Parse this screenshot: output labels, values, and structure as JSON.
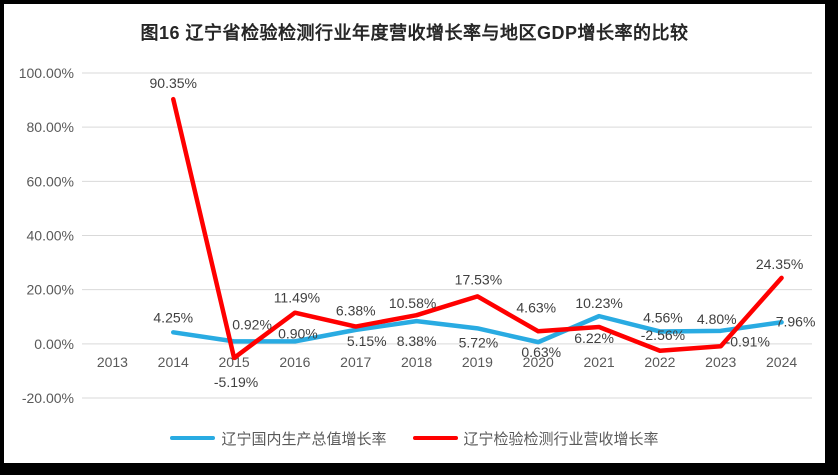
{
  "chart_data": {
    "type": "line",
    "title": "图16 辽宁省检验检测行业年度营收增长率与地区GDP增长率的比较",
    "categories": [
      "2013",
      "2014",
      "2015",
      "2016",
      "2017",
      "2018",
      "2019",
      "2020",
      "2021",
      "2022",
      "2023",
      "2024"
    ],
    "series": [
      {
        "name": "辽宁国内生产总值增长率",
        "id": "gdp",
        "color": "#29ABE2",
        "values": [
          null,
          4.25,
          0.92,
          0.9,
          5.15,
          8.38,
          5.72,
          0.63,
          10.23,
          4.56,
          4.8,
          7.96
        ],
        "labels": [
          null,
          "4.25%",
          "0.92%",
          "0.90%",
          "5.15%",
          "8.38%",
          "5.72%",
          "0.63%",
          "10.23%",
          "4.56%",
          "4.80%",
          "7.96%"
        ],
        "label_offsets": [
          null,
          [
            0,
            -15
          ],
          [
            18,
            -17
          ],
          [
            3,
            -8
          ],
          [
            11,
            11
          ],
          [
            0,
            20
          ],
          [
            1,
            14
          ],
          [
            3,
            10
          ],
          [
            0,
            -13
          ],
          [
            3,
            -14
          ],
          [
            -4,
            -12
          ],
          [
            14,
            -1
          ]
        ]
      },
      {
        "name": "辽宁检验检测行业营收增长率",
        "id": "industry",
        "color": "#FF0000",
        "values": [
          null,
          90.35,
          -5.19,
          11.49,
          6.38,
          10.58,
          17.53,
          4.63,
          6.22,
          -2.56,
          -0.91,
          24.35
        ],
        "labels": [
          null,
          "90.35%",
          "-5.19%",
          "11.49%",
          "6.38%",
          "10.58%",
          "17.53%",
          "4.63%",
          "6.22%",
          "-2.56%",
          "-0.91%",
          "24.35%"
        ],
        "label_offsets": [
          null,
          [
            0,
            -16
          ],
          [
            2,
            24
          ],
          [
            2,
            -15
          ],
          [
            0,
            -16
          ],
          [
            -4,
            -12
          ],
          [
            1,
            -17
          ],
          [
            -2,
            -24
          ],
          [
            -5,
            11
          ],
          [
            3,
            -16
          ],
          [
            27,
            -5
          ],
          [
            -2,
            -14
          ]
        ]
      }
    ],
    "y_axis": {
      "min": -20,
      "max": 100,
      "step": 20,
      "tick_labels": [
        "100.00%",
        "80.00%",
        "60.00%",
        "40.00%",
        "20.00%",
        "0.00%",
        "-20.00%"
      ]
    },
    "x_axis": {
      "label_side": "below-zero-line"
    },
    "grid": true,
    "legend_position": "bottom",
    "line_width": 4.5,
    "colors": {
      "grid": "#D9D9D9",
      "axis_text": "#595959",
      "data_label": "#404040",
      "title_text": "#262626",
      "frame_border": "#000000",
      "background": "#FFFFFF"
    }
  }
}
